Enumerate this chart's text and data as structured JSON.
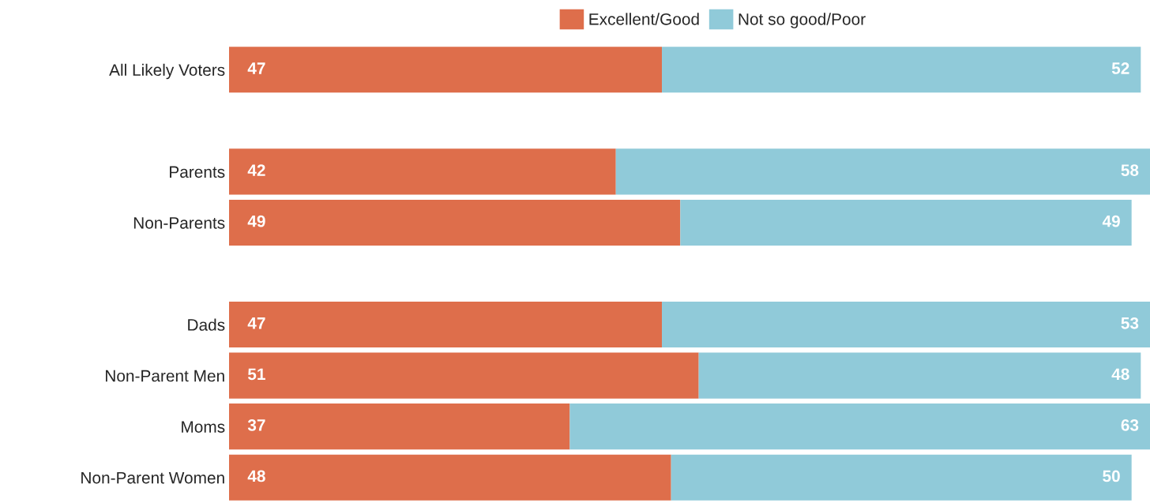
{
  "chart_data": {
    "type": "bar",
    "orientation": "horizontal",
    "stacked": true,
    "categories": [
      "All Likely Voters",
      null,
      "Parents",
      "Non-Parents",
      null,
      "Dads",
      "Non-Parent Men",
      "Moms",
      "Non-Parent Women"
    ],
    "series": [
      {
        "name": "Excellent/Good",
        "color": "#de6e4b",
        "values": [
          47,
          null,
          42,
          49,
          null,
          47,
          51,
          37,
          48
        ]
      },
      {
        "name": "Not so good/Poor",
        "color": "#90cad9",
        "values": [
          52,
          null,
          58,
          49,
          null,
          53,
          48,
          63,
          50
        ]
      }
    ],
    "xlim": [
      0,
      100
    ],
    "data_labels": true,
    "legend": "top",
    "tick_labels": "y",
    "grid": false
  }
}
